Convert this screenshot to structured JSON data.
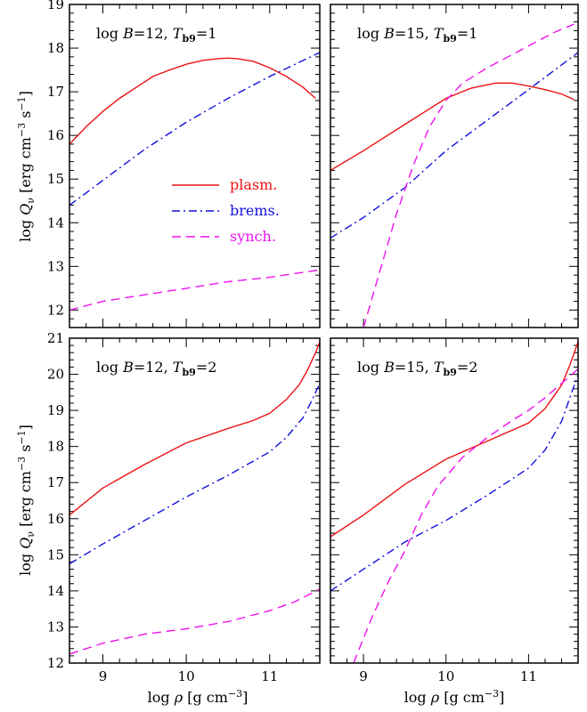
{
  "colors": {
    "plasm": "#ee1111",
    "brems": "#1111dd",
    "synch": "#ee11ee"
  },
  "xlabel": {
    "prefix": "log ",
    "sym": "ρ",
    "rest": " [g cm",
    "sup": "−3",
    "end": "]"
  },
  "ylabel": {
    "prefix": "log ",
    "sym": "Q",
    "sub": "ν",
    "rest": " [erg cm",
    "sup1": "−3",
    "mid": " s",
    "sup2": "−1",
    "end": "]"
  },
  "legend": [
    {
      "key": "plasm",
      "label": "plasm.",
      "dash": "solid"
    },
    {
      "key": "brems",
      "label": "brems.",
      "dash": "dashdot"
    },
    {
      "key": "synch",
      "label": "synch.",
      "dash": "dashed"
    }
  ],
  "chart_data": [
    {
      "type": "line",
      "title": {
        "a": "log ",
        "b": "B",
        "c": "=12, ",
        "d": "T",
        "e": "b9",
        "f": "=1"
      },
      "xlim": [
        8.6,
        11.6
      ],
      "ylim": [
        11.6,
        19
      ],
      "xticks": [
        9,
        10,
        11
      ],
      "yticks": [
        12,
        13,
        14,
        15,
        16,
        17,
        18,
        19
      ],
      "series": [
        {
          "key": "plasm",
          "x": [
            8.6,
            8.8,
            9.0,
            9.2,
            9.4,
            9.6,
            9.8,
            10.0,
            10.2,
            10.4,
            10.5,
            10.6,
            10.8,
            11.0,
            11.2,
            11.4,
            11.55
          ],
          "y": [
            15.8,
            16.2,
            16.55,
            16.85,
            17.1,
            17.35,
            17.5,
            17.63,
            17.72,
            17.76,
            17.77,
            17.76,
            17.7,
            17.55,
            17.35,
            17.1,
            16.85
          ]
        },
        {
          "key": "brems",
          "x": [
            8.6,
            9.0,
            9.5,
            10.0,
            10.5,
            11.0,
            11.6
          ],
          "y": [
            14.4,
            14.97,
            15.68,
            16.3,
            16.85,
            17.35,
            17.9
          ]
        },
        {
          "key": "synch",
          "x": [
            8.6,
            9.0,
            9.5,
            10.0,
            10.5,
            11.0,
            11.6
          ],
          "y": [
            12.0,
            12.2,
            12.35,
            12.5,
            12.65,
            12.75,
            12.92
          ]
        }
      ]
    },
    {
      "type": "line",
      "title": {
        "a": "log ",
        "b": "B",
        "c": "=15, ",
        "d": "T",
        "e": "b9",
        "f": "=1"
      },
      "xlim": [
        8.6,
        11.6
      ],
      "ylim": [
        11.6,
        19
      ],
      "xticks": [
        9,
        10,
        11
      ],
      "yticks": [
        12,
        13,
        14,
        15,
        16,
        17,
        18,
        19
      ],
      "series": [
        {
          "key": "plasm",
          "x": [
            8.6,
            9.0,
            9.5,
            10.0,
            10.3,
            10.6,
            10.8,
            11.0,
            11.2,
            11.4,
            11.55
          ],
          "y": [
            15.2,
            15.65,
            16.25,
            16.85,
            17.08,
            17.2,
            17.2,
            17.13,
            17.05,
            16.95,
            16.82
          ]
        },
        {
          "key": "brems",
          "x": [
            8.6,
            9.0,
            9.5,
            10.0,
            10.5,
            11.0,
            11.6
          ],
          "y": [
            13.65,
            14.12,
            14.8,
            15.65,
            16.35,
            17.05,
            17.9
          ]
        },
        {
          "key": "synch",
          "x": [
            9.0,
            9.2,
            9.4,
            9.6,
            9.8,
            10.0,
            10.2,
            10.5,
            10.8,
            11.0,
            11.3,
            11.55
          ],
          "y": [
            11.6,
            12.9,
            14.2,
            15.3,
            16.2,
            16.8,
            17.2,
            17.55,
            17.85,
            18.05,
            18.35,
            18.55
          ]
        }
      ]
    },
    {
      "type": "line",
      "title": {
        "a": "log ",
        "b": "B",
        "c": "=12, ",
        "d": "T",
        "e": "b9",
        "f": "=2"
      },
      "xlim": [
        8.6,
        11.6
      ],
      "ylim": [
        12,
        21
      ],
      "xticks": [
        9,
        10,
        11
      ],
      "yticks": [
        12,
        13,
        14,
        15,
        16,
        17,
        18,
        19,
        20,
        21
      ],
      "series": [
        {
          "key": "plasm",
          "x": [
            8.6,
            9.0,
            9.5,
            10.0,
            10.5,
            10.8,
            11.0,
            11.2,
            11.35,
            11.45,
            11.55,
            11.6
          ],
          "y": [
            16.1,
            16.85,
            17.5,
            18.1,
            18.5,
            18.72,
            18.92,
            19.3,
            19.7,
            20.1,
            20.6,
            20.9
          ]
        },
        {
          "key": "brems",
          "x": [
            8.6,
            9.0,
            9.5,
            10.0,
            10.5,
            11.0,
            11.2,
            11.4,
            11.5,
            11.6
          ],
          "y": [
            14.75,
            15.3,
            15.95,
            16.6,
            17.2,
            17.85,
            18.25,
            18.8,
            19.25,
            19.75
          ]
        },
        {
          "key": "synch",
          "x": [
            8.6,
            9.0,
            9.5,
            10.0,
            10.5,
            11.0,
            11.3,
            11.6
          ],
          "y": [
            12.25,
            12.55,
            12.8,
            12.95,
            13.15,
            13.45,
            13.7,
            14.05
          ]
        }
      ]
    },
    {
      "type": "line",
      "title": {
        "a": "log ",
        "b": "B",
        "c": "=15, ",
        "d": "T",
        "e": "b9",
        "f": "=2"
      },
      "xlim": [
        8.6,
        11.6
      ],
      "ylim": [
        12,
        21
      ],
      "xticks": [
        9,
        10,
        11
      ],
      "yticks": [
        12,
        13,
        14,
        15,
        16,
        17,
        18,
        19,
        20,
        21
      ],
      "series": [
        {
          "key": "plasm",
          "x": [
            8.6,
            9.0,
            9.5,
            10.0,
            10.5,
            11.0,
            11.2,
            11.4,
            11.5,
            11.6
          ],
          "y": [
            15.5,
            16.1,
            16.95,
            17.65,
            18.15,
            18.65,
            19.05,
            19.7,
            20.25,
            20.9
          ]
        },
        {
          "key": "brems",
          "x": [
            8.6,
            9.0,
            9.5,
            10.0,
            10.5,
            11.0,
            11.2,
            11.4,
            11.6
          ],
          "y": [
            14.0,
            14.6,
            15.35,
            15.95,
            16.65,
            17.4,
            17.9,
            18.7,
            20.0
          ]
        },
        {
          "key": "synch",
          "x": [
            8.88,
            9.1,
            9.3,
            9.5,
            9.7,
            9.9,
            10.2,
            10.5,
            10.8,
            11.0,
            11.2,
            11.4,
            11.6
          ],
          "y": [
            12.0,
            13.25,
            14.25,
            15.1,
            16.1,
            16.9,
            17.7,
            18.25,
            18.72,
            19.0,
            19.35,
            19.75,
            20.15
          ]
        }
      ]
    }
  ]
}
